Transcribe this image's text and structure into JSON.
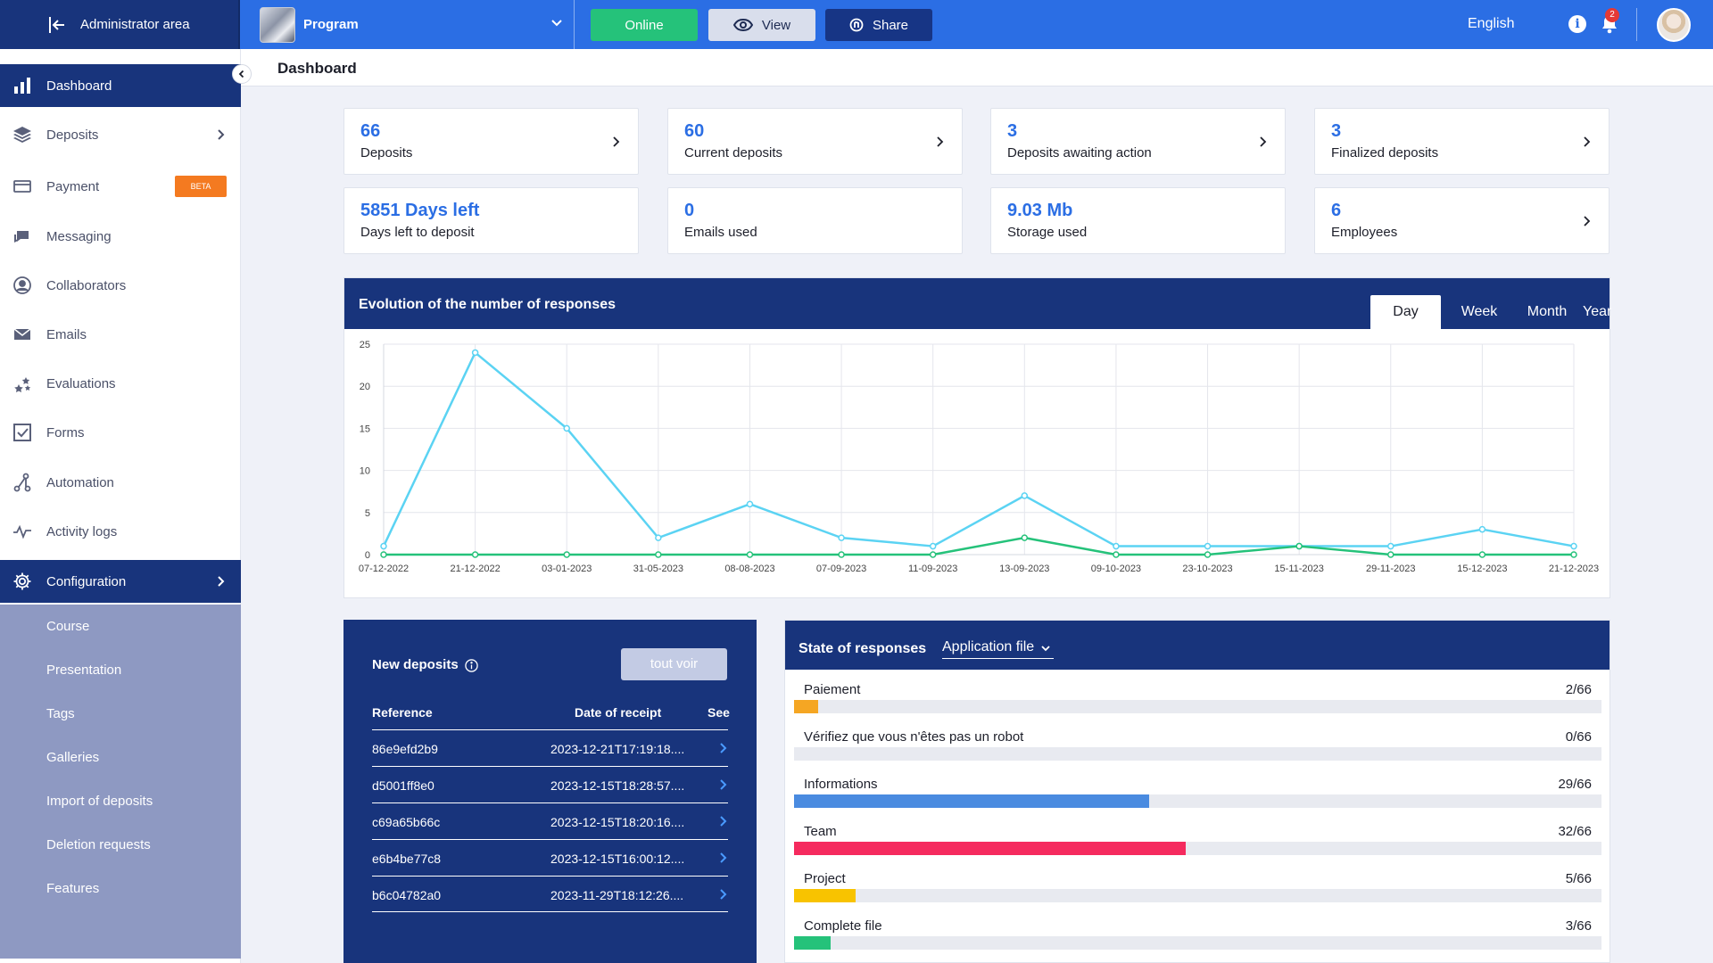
{
  "topbar": {
    "admin_label": "Administrator area",
    "program_name": "Program",
    "online_label": "Online",
    "view_label": "View",
    "share_label": "Share",
    "language": "English",
    "notification_count": "2",
    "info_glyph": "i"
  },
  "page": {
    "title": "Dashboard"
  },
  "sidebar": {
    "items": [
      {
        "label": "Dashboard",
        "icon": "bar-chart-icon"
      },
      {
        "label": "Deposits",
        "icon": "layers-icon"
      },
      {
        "label": "Payment",
        "icon": "credit-card-icon",
        "badge": "BETA"
      },
      {
        "label": "Messaging",
        "icon": "chat-icon"
      },
      {
        "label": "Collaborators",
        "icon": "user-circle-icon"
      },
      {
        "label": "Emails",
        "icon": "mail-icon"
      },
      {
        "label": "Evaluations",
        "icon": "stars-icon"
      },
      {
        "label": "Forms",
        "icon": "checkbox-icon"
      },
      {
        "label": "Automation",
        "icon": "flow-icon"
      },
      {
        "label": "Activity logs",
        "icon": "activity-icon"
      },
      {
        "label": "Configuration",
        "icon": "gear-icon"
      }
    ],
    "sub_items": [
      "Course",
      "Presentation",
      "Tags",
      "Galleries",
      "Import of deposits",
      "Deletion requests",
      "Features"
    ]
  },
  "stats": [
    {
      "value": "66",
      "label": "Deposits",
      "arrow": true
    },
    {
      "value": "60",
      "label": "Current deposits",
      "arrow": true
    },
    {
      "value": "3",
      "label": "Deposits awaiting action",
      "arrow": true
    },
    {
      "value": "3",
      "label": "Finalized deposits",
      "arrow": true
    },
    {
      "value": "5851 Days left",
      "label": "Days left to deposit",
      "arrow": false
    },
    {
      "value": "0",
      "label": "Emails used",
      "arrow": false
    },
    {
      "value": "9.03 Mb",
      "label": "Storage used",
      "arrow": false
    },
    {
      "value": "6",
      "label": "Employees",
      "arrow": true
    }
  ],
  "chart_section": {
    "title": "Evolution of the number of responses",
    "periods": [
      "Day",
      "Week",
      "Month",
      "Year"
    ],
    "active_period": "Day"
  },
  "chart_data": {
    "type": "line",
    "title": "Evolution of the number of responses",
    "x": [
      "07-12-2022",
      "21-12-2022",
      "03-01-2023",
      "31-05-2023",
      "08-08-2023",
      "07-09-2023",
      "11-09-2023",
      "13-09-2023",
      "09-10-2023",
      "23-10-2023",
      "15-11-2023",
      "29-11-2023",
      "15-12-2023",
      "21-12-2023"
    ],
    "series": [
      {
        "values": [
          1,
          24,
          15,
          2,
          6,
          2,
          1,
          7,
          1,
          1,
          1,
          1,
          3,
          1
        ],
        "color": "#5bd3f3"
      },
      {
        "values": [
          0,
          0,
          0,
          0,
          0,
          0,
          0,
          2,
          0,
          0,
          1,
          0,
          0,
          0
        ],
        "color": "#25c27a"
      }
    ],
    "ylim": [
      0,
      25
    ],
    "yticks": [
      0,
      5,
      10,
      15,
      20,
      25
    ],
    "grid": true
  },
  "new_deposits": {
    "title": "New deposits",
    "button": "tout voir",
    "columns": [
      "Reference",
      "Date of receipt",
      "See"
    ],
    "rows": [
      {
        "ref": "86e9efd2b9",
        "date": "2023-12-21T17:19:18...."
      },
      {
        "ref": "d5001ff8e0",
        "date": "2023-12-15T18:28:57...."
      },
      {
        "ref": "c69a65b66c",
        "date": "2023-12-15T18:20:16...."
      },
      {
        "ref": "e6b4be77c8",
        "date": "2023-12-15T16:00:12...."
      },
      {
        "ref": "b6c04782a0",
        "date": "2023-11-29T18:12:26...."
      }
    ]
  },
  "state_of_responses": {
    "title": "State of responses",
    "selector": "Application file",
    "items": [
      {
        "label": "Paiement",
        "count": "2/66",
        "fraction": 0.0303,
        "color": "#f5a623"
      },
      {
        "label": "Vérifiez que vous n'êtes pas un robot",
        "count": "0/66",
        "fraction": 0,
        "color": "#f5a623"
      },
      {
        "label": "Informations",
        "count": "29/66",
        "fraction": 0.4394,
        "color": "#4a8be0"
      },
      {
        "label": "Team",
        "count": "32/66",
        "fraction": 0.4848,
        "color": "#f52a5e"
      },
      {
        "label": "Project",
        "count": "5/66",
        "fraction": 0.0758,
        "color": "#f8c300"
      },
      {
        "label": "Complete file",
        "count": "3/66",
        "fraction": 0.0455,
        "color": "#25c27a"
      }
    ]
  }
}
